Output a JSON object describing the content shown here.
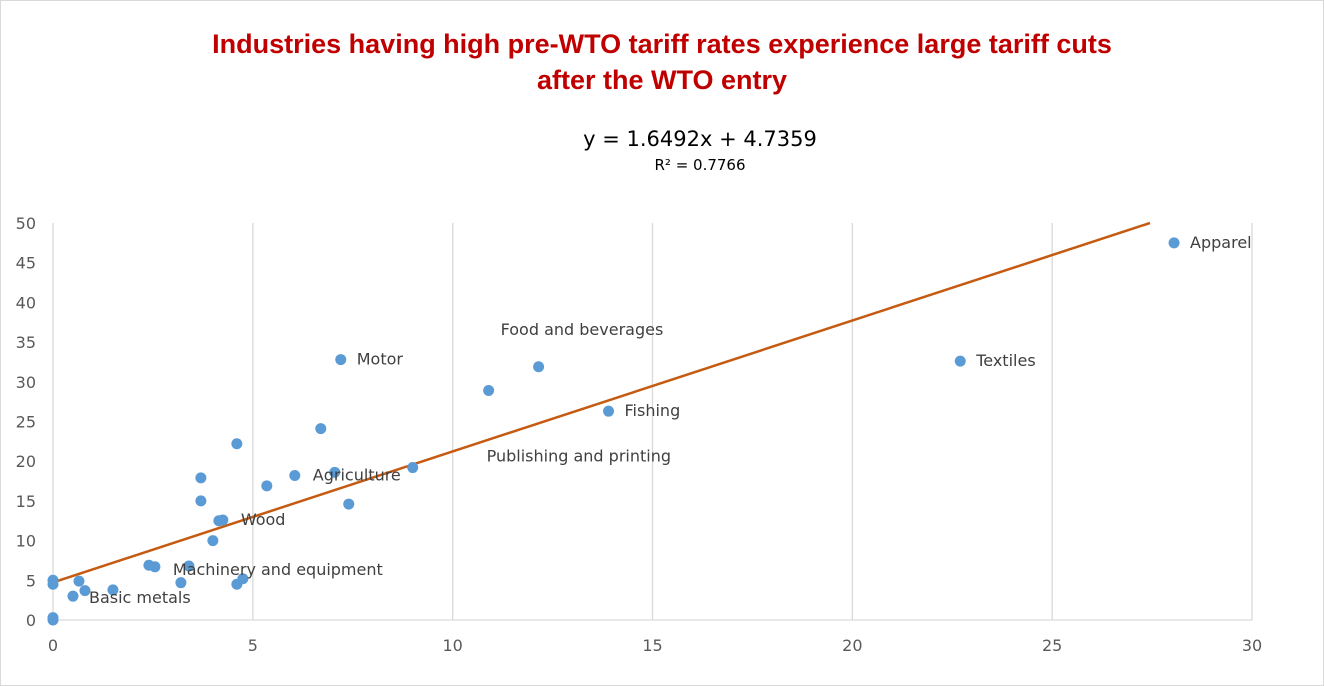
{
  "title_lines": [
    "Industries having high pre-WTO tariff rates experience large tariff cuts",
    "after the WTO entry"
  ],
  "trendline": {
    "equation": "y = 1.6492x + 4.7359",
    "r_squared": "R² = 0.7766",
    "slope": 1.6492,
    "intercept": 4.7359
  },
  "colors": {
    "title": "#c00000",
    "points": "#5b9bd5",
    "trendline": "#c55a11",
    "grid": "#d9d9d9"
  },
  "chart_data": {
    "type": "scatter",
    "title": "Industries having high pre-WTO tariff rates experience large tariff cuts after the WTO entry",
    "xlabel": "",
    "ylabel": "",
    "xlim": [
      0,
      30
    ],
    "ylim": [
      0,
      50
    ],
    "xticks": [
      0,
      5,
      10,
      15,
      20,
      25,
      30
    ],
    "yticks": [
      0,
      5,
      10,
      15,
      20,
      25,
      30,
      35,
      40,
      45,
      50
    ],
    "grid": "vertical",
    "points": [
      {
        "x": 28.05,
        "y": 47.5
      },
      {
        "x": 22.7,
        "y": 32.6
      },
      {
        "x": 12.15,
        "y": 31.9
      },
      {
        "x": 10.9,
        "y": 28.9
      },
      {
        "x": 13.9,
        "y": 26.3
      },
      {
        "x": 7.2,
        "y": 32.8
      },
      {
        "x": 6.7,
        "y": 24.1
      },
      {
        "x": 4.6,
        "y": 22.2
      },
      {
        "x": 9.0,
        "y": 19.2
      },
      {
        "x": 7.05,
        "y": 18.6
      },
      {
        "x": 6.05,
        "y": 18.2
      },
      {
        "x": 3.7,
        "y": 17.9
      },
      {
        "x": 5.35,
        "y": 16.9
      },
      {
        "x": 3.7,
        "y": 15.0
      },
      {
        "x": 7.4,
        "y": 14.6
      },
      {
        "x": 4.15,
        "y": 12.5
      },
      {
        "x": 4.25,
        "y": 12.6
      },
      {
        "x": 4.0,
        "y": 10.0
      },
      {
        "x": 2.4,
        "y": 6.9
      },
      {
        "x": 2.55,
        "y": 6.7
      },
      {
        "x": 3.4,
        "y": 6.8
      },
      {
        "x": 3.2,
        "y": 4.7
      },
      {
        "x": 4.75,
        "y": 5.2
      },
      {
        "x": 4.6,
        "y": 4.5
      },
      {
        "x": 0.0,
        "y": 5.0
      },
      {
        "x": 0.0,
        "y": 4.5
      },
      {
        "x": 0.65,
        "y": 4.9
      },
      {
        "x": 0.8,
        "y": 3.7
      },
      {
        "x": 1.5,
        "y": 3.8
      },
      {
        "x": 0.5,
        "y": 3.0
      },
      {
        "x": 0.0,
        "y": 0.3
      },
      {
        "x": 0.0,
        "y": 0.0
      }
    ],
    "annotations": [
      {
        "text": "Apparel",
        "x": 28.45,
        "y": 47.5
      },
      {
        "text": "Textiles",
        "x": 23.1,
        "y": 32.6
      },
      {
        "text": "Food and beverages",
        "x": 11.2,
        "y": 36.5
      },
      {
        "text": "Motor",
        "x": 7.6,
        "y": 32.8
      },
      {
        "text": "Fishing",
        "x": 14.3,
        "y": 26.3
      },
      {
        "text": "Publishing and printing",
        "x": 10.85,
        "y": 20.6
      },
      {
        "text": "Agriculture",
        "x": 6.5,
        "y": 18.2
      },
      {
        "text": "Wood",
        "x": 4.7,
        "y": 12.6
      },
      {
        "text": "Machinery and equipment",
        "x": 3.0,
        "y": 6.3
      },
      {
        "text": "Basic metals",
        "x": 0.9,
        "y": 2.8
      }
    ]
  }
}
